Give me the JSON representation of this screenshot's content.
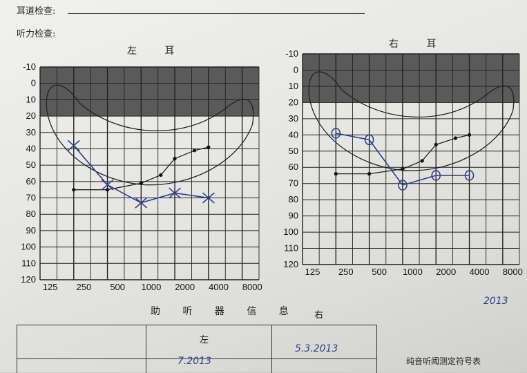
{
  "header": {
    "ear_canal_label": "耳道检查:",
    "hearing_label": "听力检查:"
  },
  "charts": [
    {
      "ear": "左 耳",
      "freq_labels": [
        "125",
        "250",
        "500",
        "1000",
        "2000",
        "4000",
        "8000"
      ],
      "db_labels": [
        "-10",
        "0",
        "10",
        "20",
        "30",
        "40",
        "50",
        "60",
        "70",
        "80",
        "90",
        "100",
        "110",
        "120"
      ]
    },
    {
      "ear": "右 耳",
      "freq_labels": [
        "125",
        "250",
        "500",
        "1000",
        "2000",
        "4000",
        "8000"
      ],
      "db_labels": [
        "-10",
        "0",
        "10",
        "20",
        "30",
        "40",
        "50",
        "60",
        "70",
        "80",
        "90",
        "100",
        "110",
        "120"
      ]
    }
  ],
  "chart_data": [
    {
      "type": "line",
      "title": "左 耳",
      "x": [
        "250",
        "500",
        "1000",
        "1500",
        "2000",
        "3000",
        "4000"
      ],
      "ylim": [
        -10,
        120
      ],
      "series": [
        {
          "name": "",
          "marker": "dot",
          "values": [
            65,
            65,
            61,
            56,
            46,
            41,
            39
          ]
        }
      ],
      "aided_marks": [
        {
          "x": "250",
          "y": 38,
          "symbol": "×"
        },
        {
          "x": "500",
          "y": 62,
          "symbol": "×"
        },
        {
          "x": "1000",
          "y": 73,
          "symbol": "×"
        },
        {
          "x": "2000",
          "y": 67,
          "symbol": "×"
        },
        {
          "x": "4000",
          "y": 70,
          "symbol": "×"
        }
      ]
    },
    {
      "type": "line",
      "title": "右 耳",
      "x": [
        "250",
        "500",
        "1000",
        "1500",
        "2000",
        "3000",
        "4000"
      ],
      "ylim": [
        -10,
        120
      ],
      "series": [
        {
          "name": "",
          "marker": "dot",
          "values": [
            64,
            64,
            61,
            56,
            46,
            42,
            40
          ]
        }
      ],
      "aided_marks": [
        {
          "x": "250",
          "y": 39,
          "symbol": "○"
        },
        {
          "x": "500",
          "y": 43,
          "symbol": "○"
        },
        {
          "x": "1000",
          "y": 71,
          "symbol": "○"
        },
        {
          "x": "2000",
          "y": 65,
          "symbol": "○"
        },
        {
          "x": "4000",
          "y": 65,
          "symbol": "○"
        }
      ]
    }
  ],
  "hearing_aid": {
    "title": "助 听 器 信 息",
    "left_header": "左",
    "right_header": "右",
    "left_value": "7.2013",
    "right_value": "5.3.2013"
  },
  "signature_date": "2013",
  "legend_note": "纯音听阈测定符号表"
}
